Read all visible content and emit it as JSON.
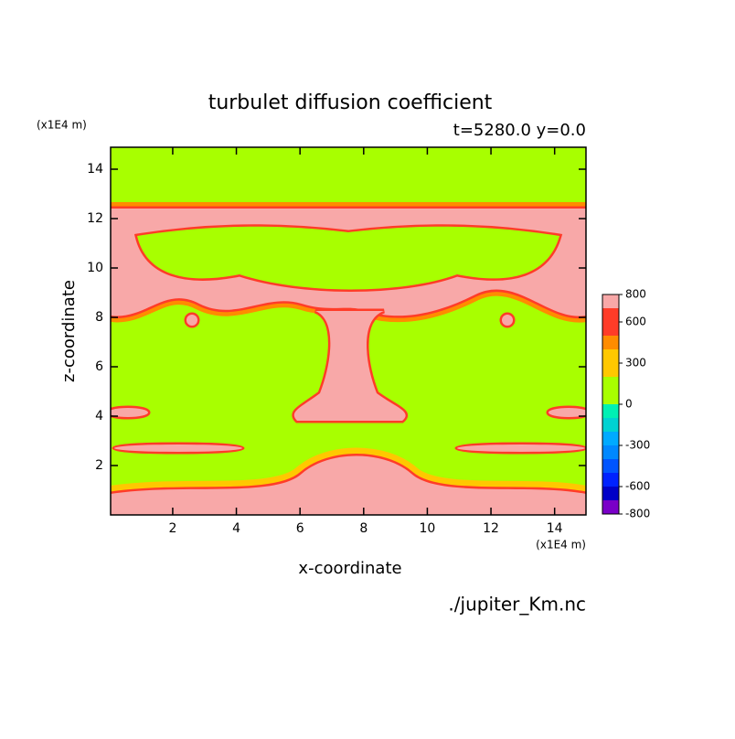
{
  "chart_data": {
    "type": "contour",
    "title": "turbulet diffusion coefficient",
    "subtitle": "t=5280.0 y=0.0",
    "x_label": "x-coordinate",
    "y_label": "z-coordinate",
    "x_unit": "(x1E4 m)",
    "y_unit": "(x1E4 m)",
    "source": "./jupiter_Km.nc",
    "xlim": [
      0,
      15
    ],
    "ylim": [
      0,
      15
    ],
    "xticks": [
      2,
      4,
      6,
      8,
      10,
      12,
      14
    ],
    "yticks": [
      2,
      4,
      6,
      8,
      10,
      12,
      14
    ],
    "colorbar": {
      "levels": [
        -800,
        -700,
        -600,
        -500,
        -400,
        -300,
        -200,
        -100,
        0,
        100,
        200,
        300,
        400,
        500,
        600,
        700,
        800
      ],
      "colors": [
        "#7a00c8",
        "#0000c8",
        "#0022ff",
        "#0055ff",
        "#0088ff",
        "#00aaff",
        "#00d2d2",
        "#00f0b4",
        "#a8ff00",
        "#a8ff00",
        "#ffc800",
        "#ffc800",
        "#ff8c00",
        "#ff3c28",
        "#ff3c28",
        "#f8a8a8"
      ],
      "ticks": [
        -800,
        -600,
        -300,
        0,
        300,
        600,
        800
      ]
    }
  }
}
